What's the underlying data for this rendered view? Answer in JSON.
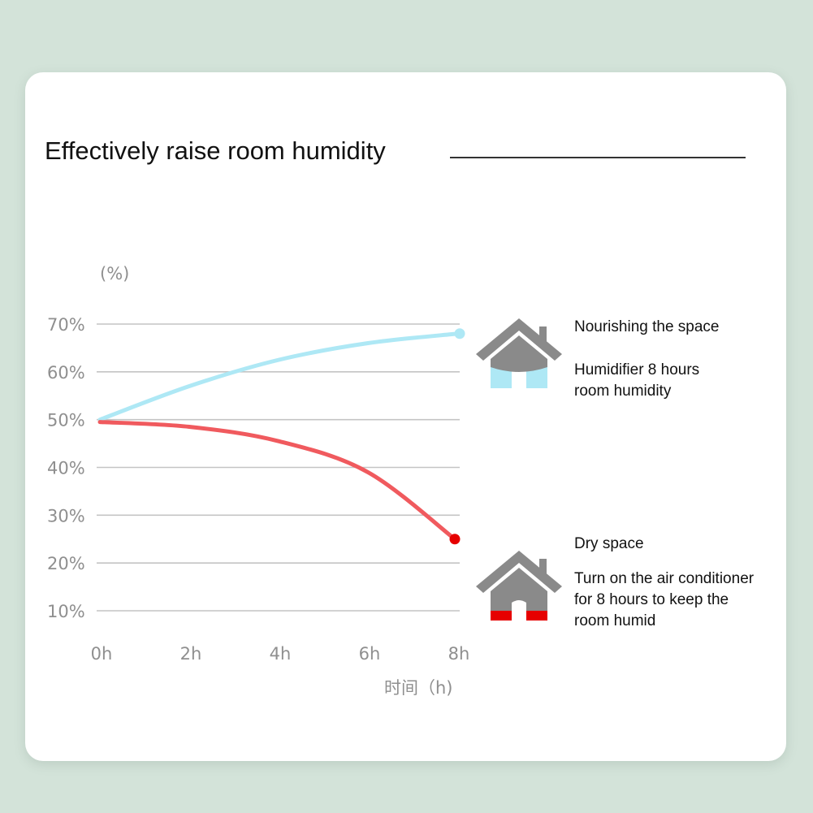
{
  "page": {
    "title": "Effectively raise room humidity"
  },
  "legend": {
    "humid": {
      "heading": "Nourishing the space",
      "line1": "Humidifier 8 hours",
      "line2": "room humidity",
      "icon": "house-humid-icon",
      "color": "#aee8f5"
    },
    "dry": {
      "heading": "Dry space",
      "line1": "Turn on the air conditioner",
      "line2": "for 8 hours to keep the",
      "line3": "room humid",
      "icon": "house-dry-icon",
      "color": "#e60000"
    }
  },
  "chart_data": {
    "type": "line",
    "title": "Effectively raise room humidity",
    "ylabel": "(%)",
    "xlabel": "时间（h)",
    "x": [
      0,
      2,
      4,
      6,
      8
    ],
    "x_tick_labels": [
      "0h",
      "2h",
      "4h",
      "6h",
      "8h"
    ],
    "y_ticks": [
      10,
      20,
      30,
      40,
      50,
      60,
      70
    ],
    "y_tick_labels": [
      "10%",
      "20%",
      "30%",
      "40%",
      "50%",
      "60%",
      "70%"
    ],
    "ylim": [
      10,
      70
    ],
    "xlim": [
      0,
      8
    ],
    "grid": true,
    "series": [
      {
        "name": "Humidifier 8 hours room humidity",
        "color": "#aee8f5",
        "values": [
          50,
          57,
          62.5,
          66,
          68
        ]
      },
      {
        "name": "Turn on the air conditioner for 8 hours to keep the room humid",
        "color": "#f05a5e",
        "values": [
          49.5,
          48.5,
          45.5,
          39,
          25
        ]
      }
    ]
  }
}
